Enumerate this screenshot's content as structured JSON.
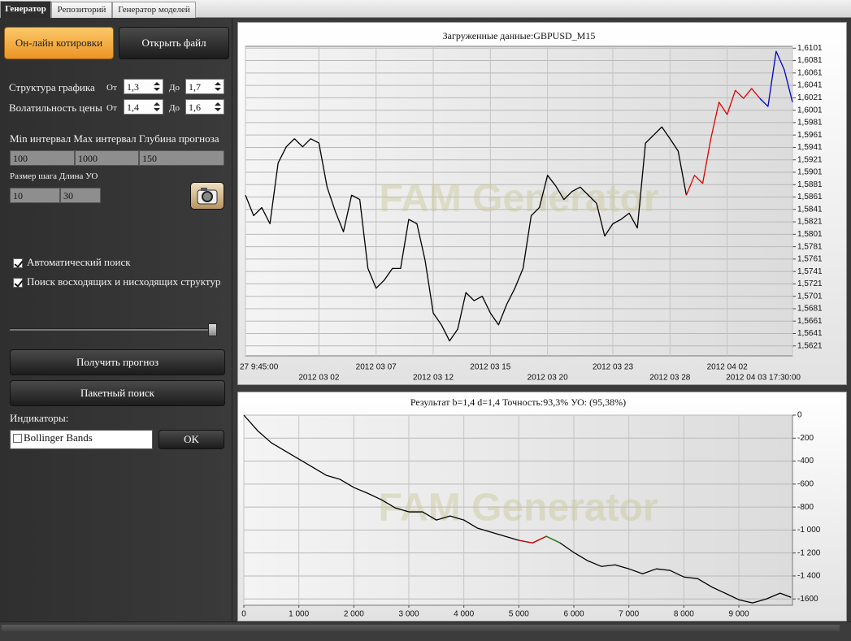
{
  "tabs": [
    "Генератор",
    "Репозиторий",
    "Генератор моделей"
  ],
  "buttons": {
    "online": "Он-лайн котировки",
    "open_file": "Открыть файл",
    "forecast": "Получить прогноз",
    "batch": "Пакетный поиск",
    "ok": "OK"
  },
  "params": {
    "structure": {
      "label": "Структура графика",
      "from_label": "От",
      "from": "1,3",
      "to_label": "До",
      "to": "1,7"
    },
    "volatility": {
      "label": "Волатильность цены",
      "from_label": "От",
      "from": "1,4",
      "to_label": "До",
      "to": "1,6"
    }
  },
  "intervals": {
    "labels": [
      "Min интервал",
      "Max интервал",
      "Глубина прогноза"
    ],
    "values": [
      "100",
      "1000",
      "150"
    ]
  },
  "step": {
    "labels": [
      "Размер шага",
      "Длина УО"
    ],
    "values": [
      "10",
      "30"
    ]
  },
  "checkboxes": [
    "Автоматический поиск",
    "Поиск восходящих и нисходящих структур"
  ],
  "indicators": {
    "label": "Индикаторы:",
    "items": [
      "Bollinger Bands"
    ]
  },
  "chart_data": [
    {
      "type": "line",
      "title": "Загруженные данные:GBPUSD_M15",
      "watermark": "FAM Generator",
      "grid": true,
      "categories": [
        "27 9:45:00",
        null,
        null,
        null,
        null,
        null,
        null,
        null,
        null,
        "2012 03 02",
        null,
        null,
        null,
        null,
        null,
        null,
        "2012 03 07",
        null,
        null,
        null,
        null,
        null,
        null,
        "2012 03 12",
        null,
        null,
        null,
        null,
        null,
        null,
        "2012 03 15",
        null,
        null,
        null,
        null,
        null,
        null,
        "2012 03 20",
        null,
        null,
        null,
        null,
        null,
        null,
        null,
        "2012 03 23",
        null,
        null,
        null,
        null,
        null,
        null,
        "2012 03 28",
        null,
        null,
        null,
        null,
        null,
        null,
        "2012 04 02",
        null,
        null,
        null,
        null,
        null,
        null,
        null,
        "2012 04 03 17:30:00"
      ],
      "ylim": [
        1.5605,
        1.6104
      ],
      "yticks": [
        {
          "value": 1.5621,
          "label": "1,5621"
        },
        {
          "value": 1.5641,
          "label": "1,5641"
        },
        {
          "value": 1.5661,
          "label": "1,5661"
        },
        {
          "value": 1.5681,
          "label": "1,5681"
        },
        {
          "value": 1.5701,
          "label": "1,5701"
        },
        {
          "value": 1.5721,
          "label": "1,5721"
        },
        {
          "value": 1.5741,
          "label": "1,5741"
        },
        {
          "value": 1.5761,
          "label": "1,5761"
        },
        {
          "value": 1.5781,
          "label": "1,5781"
        },
        {
          "value": 1.5801,
          "label": "1,5801"
        },
        {
          "value": 1.5821,
          "label": "1,5821"
        },
        {
          "value": 1.5841,
          "label": "1,5841"
        },
        {
          "value": 1.5861,
          "label": "1,5861"
        },
        {
          "value": 1.5881,
          "label": "1,5881"
        },
        {
          "value": 1.5901,
          "label": "1,5901"
        },
        {
          "value": 1.5921,
          "label": "1,5921"
        },
        {
          "value": 1.5941,
          "label": "1,5941"
        },
        {
          "value": 1.5961,
          "label": "1,5961"
        },
        {
          "value": 1.5981,
          "label": "1,5981"
        },
        {
          "value": 1.6001,
          "label": "1,6001"
        },
        {
          "value": 1.6021,
          "label": "1,6021"
        },
        {
          "value": 1.6041,
          "label": "1,6041"
        },
        {
          "value": 1.6061,
          "label": "1,6061"
        },
        {
          "value": 1.6081,
          "label": "1,6081"
        },
        {
          "value": 1.6101,
          "label": "1,6101"
        }
      ],
      "series": [
        {
          "color": "#000000",
          "values": [
            1.5864,
            1.5831,
            1.5844,
            1.5818,
            1.5916,
            1.5942,
            1.5955,
            1.5942,
            1.5955,
            1.5948,
            1.5877,
            1.5838,
            1.5805,
            1.5864,
            1.5857,
            1.5746,
            1.5714,
            1.5727,
            1.5746,
            1.5746,
            1.5825,
            1.5818,
            1.5759,
            1.5674,
            1.5655,
            1.5629,
            1.5648,
            1.5707,
            1.5694,
            1.5701,
            1.5674,
            1.5655,
            1.5688,
            1.5714,
            1.5746,
            1.5831,
            1.5844,
            1.5896,
            1.5879,
            1.5857,
            1.587,
            1.5877,
            1.5864,
            1.5851,
            1.5798,
            1.5818,
            1.5825,
            1.5835,
            1.5811,
            1.5948,
            1.5961,
            1.5974,
            1.5955,
            1.5935,
            1.5864,
            null,
            null,
            null,
            null,
            null,
            null,
            null,
            null,
            null,
            null,
            null,
            null,
            null
          ]
        },
        {
          "color": "#e00000",
          "values": [
            null,
            null,
            null,
            null,
            null,
            null,
            null,
            null,
            null,
            null,
            null,
            null,
            null,
            null,
            null,
            null,
            null,
            null,
            null,
            null,
            null,
            null,
            null,
            null,
            null,
            null,
            null,
            null,
            null,
            null,
            null,
            null,
            null,
            null,
            null,
            null,
            null,
            null,
            null,
            null,
            null,
            null,
            null,
            null,
            null,
            null,
            null,
            null,
            null,
            null,
            null,
            null,
            null,
            null,
            1.5864,
            1.5896,
            1.5883,
            1.5955,
            1.6014,
            1.5994,
            1.6033,
            1.602,
            1.6036,
            1.602,
            null,
            null,
            null,
            null
          ]
        },
        {
          "color": "#0000c8",
          "values": [
            null,
            null,
            null,
            null,
            null,
            null,
            null,
            null,
            null,
            null,
            null,
            null,
            null,
            null,
            null,
            null,
            null,
            null,
            null,
            null,
            null,
            null,
            null,
            null,
            null,
            null,
            null,
            null,
            null,
            null,
            null,
            null,
            null,
            null,
            null,
            null,
            null,
            null,
            null,
            null,
            null,
            null,
            null,
            null,
            null,
            null,
            null,
            null,
            null,
            null,
            null,
            null,
            null,
            null,
            null,
            null,
            null,
            null,
            null,
            null,
            null,
            null,
            null,
            1.602,
            1.6007,
            1.6096,
            1.6066,
            1.6014
          ]
        }
      ]
    },
    {
      "type": "line",
      "title": "Результат b=1,4 d=1,4  Точность:93,3%   УО: (95,38%)",
      "watermark": "FAM Generator",
      "grid": true,
      "x": [
        0,
        250,
        500,
        750,
        1000,
        1250,
        1500,
        1750,
        2000,
        2250,
        2500,
        2750,
        3000,
        3250,
        3500,
        3750,
        4000,
        4250,
        4500,
        4750,
        5000,
        5250,
        5500,
        5750,
        6000,
        6250,
        6500,
        6750,
        7000,
        7250,
        7500,
        7750,
        8000,
        8250,
        8500,
        8750,
        9000,
        9250,
        9500,
        9750,
        9950
      ],
      "xlim": [
        0,
        9975
      ],
      "xticks": [
        0,
        {
          "value": 1000,
          "label": "1 000"
        },
        {
          "value": 2000,
          "label": "2 000"
        },
        {
          "value": 3000,
          "label": "3 000"
        },
        {
          "value": 4000,
          "label": "4 000"
        },
        {
          "value": 5000,
          "label": "5 000"
        },
        {
          "value": 6000,
          "label": "6 000"
        },
        {
          "value": 7000,
          "label": "7 000"
        },
        {
          "value": 8000,
          "label": "8 000"
        },
        {
          "value": 9000,
          "label": "9 000"
        }
      ],
      "ylim": [
        -1655,
        0
      ],
      "yticks": [
        0,
        -200,
        -400,
        -600,
        -800,
        {
          "value": -1000,
          "label": "-1 000"
        },
        {
          "value": -1200,
          "label": "-1 200"
        },
        {
          "value": -1400,
          "label": "-1 400"
        },
        -1600
      ],
      "series": [
        {
          "color": "#000000",
          "values": [
            0,
            -135,
            -241,
            -312,
            -382,
            -453,
            -524,
            -559,
            -630,
            -680,
            -736,
            -807,
            -842,
            -842,
            -913,
            -878,
            -913,
            -984,
            -1019,
            -1055,
            -1090,
            -1112,
            -1055,
            -1112,
            -1196,
            -1267,
            -1317,
            -1303,
            -1338,
            -1381,
            -1338,
            -1352,
            -1409,
            -1423,
            -1494,
            -1550,
            -1607,
            -1635,
            -1600,
            -1550,
            -1586
          ]
        },
        {
          "color": "#e00000",
          "values": [
            null,
            null,
            null,
            null,
            null,
            null,
            null,
            null,
            null,
            null,
            null,
            null,
            null,
            null,
            null,
            null,
            null,
            null,
            null,
            null,
            -1090,
            -1112,
            -1055,
            null,
            null,
            null,
            null,
            null,
            null,
            null,
            null,
            null,
            null,
            null,
            null,
            null,
            null,
            null,
            null,
            null,
            null
          ]
        },
        {
          "color": "#1a8a1a",
          "values": [
            null,
            null,
            null,
            null,
            null,
            null,
            null,
            null,
            null,
            null,
            null,
            null,
            null,
            null,
            null,
            null,
            null,
            null,
            null,
            null,
            null,
            null,
            -1055,
            -1112,
            null,
            null,
            null,
            null,
            null,
            null,
            null,
            null,
            null,
            null,
            null,
            null,
            null,
            null,
            null,
            null,
            null
          ]
        }
      ]
    }
  ]
}
